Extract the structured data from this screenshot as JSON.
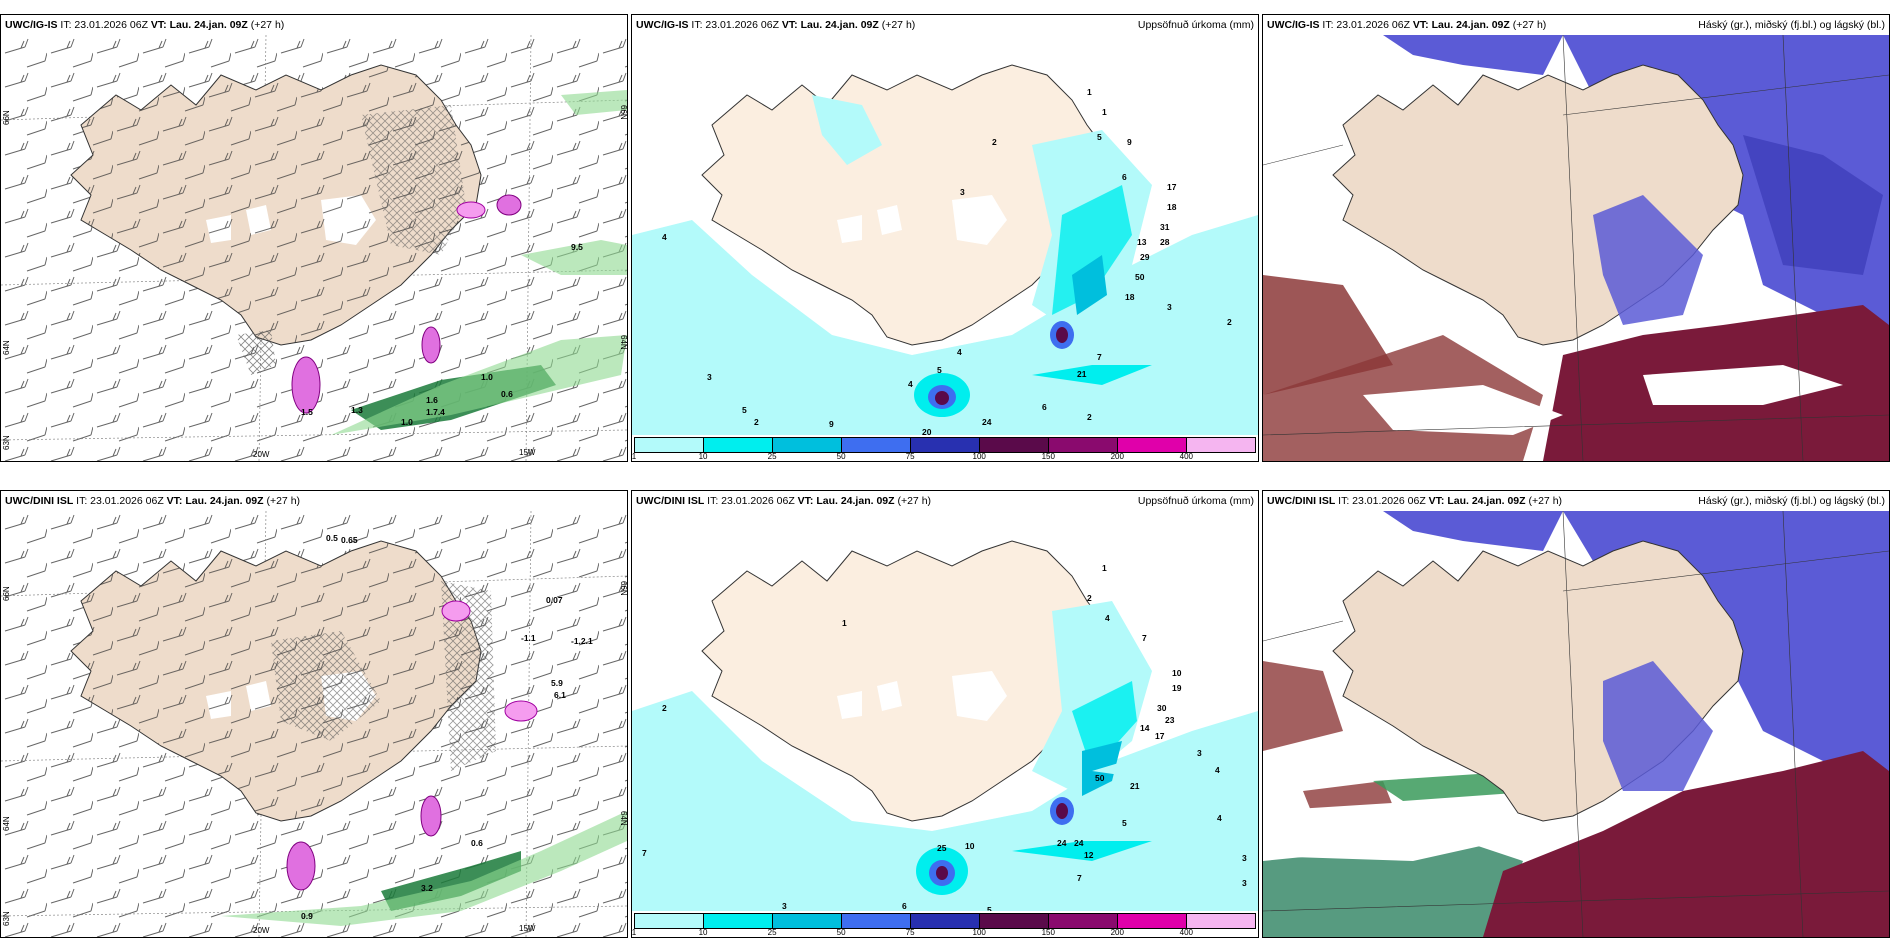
{
  "common": {
    "init_time": "IT: 23.01.2026 06Z",
    "valid_label": "VT: Lau. 24.jan. 09Z",
    "lead": "(+27 h)"
  },
  "rows": [
    {
      "model": "UWC/IG-IS"
    },
    {
      "model": "UWC/DINI ISL"
    }
  ],
  "titles": {
    "precip": "Uppsöfnuð úrkoma (mm)",
    "cloud": "Háský (gr.), miðský (fj.bl.) og lágský (bl.)"
  },
  "axes": {
    "lat_66": "66N",
    "lat_64": "64N",
    "lat_63": "63N",
    "lon_20": "20W",
    "lon_15": "15W"
  },
  "legend": {
    "colors": [
      "#b3fafa",
      "#00eeee",
      "#00bfdd",
      "#3e6ef0",
      "#2830b0",
      "#5a0a4a",
      "#8a0a6e",
      "#e000aa",
      "#f5b5f0"
    ],
    "ticks": [
      "1",
      "10",
      "25",
      "50",
      "75",
      "100",
      "150",
      "200",
      "400"
    ]
  },
  "wind_labels": {
    "top": [
      "1.5",
      "1.0",
      "0.6",
      "1.0",
      "1.6",
      "9.5",
      "1.3",
      "1.7.4"
    ],
    "bottom": [
      "0.5",
      "0.65",
      "0.07",
      "-1.1",
      "-1.2.1",
      "0.6",
      "3.2",
      "0.9",
      "5.9",
      "6.1"
    ]
  },
  "precip_labels": {
    "top": [
      "1",
      "1",
      "2",
      "5",
      "9",
      "6",
      "17",
      "18",
      "13",
      "31",
      "28",
      "29",
      "50",
      "18",
      "3",
      "2",
      "7",
      "21",
      "6",
      "4",
      "5",
      "4",
      "20",
      "24",
      "9",
      "5",
      "2",
      "4",
      "3",
      "2",
      "3",
      "4",
      "3",
      "1"
    ],
    "bottom": [
      "1",
      "2",
      "4",
      "7",
      "10",
      "19",
      "30",
      "23",
      "14",
      "17",
      "50",
      "21",
      "5",
      "4",
      "3",
      "24",
      "24",
      "12",
      "25",
      "10",
      "7",
      "3",
      "6",
      "5",
      "7",
      "2",
      "3",
      "4",
      "1",
      "3"
    ]
  }
}
